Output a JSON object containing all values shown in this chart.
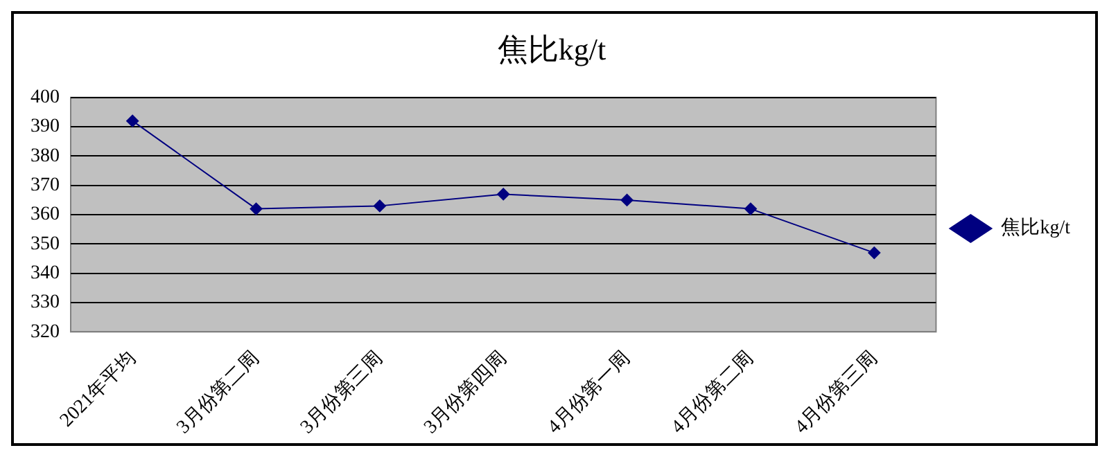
{
  "chart_data": {
    "type": "line",
    "title": "焦比kg/t",
    "categories": [
      "2021年平均",
      "3月份第二周",
      "3月份第三周",
      "3月份第四周",
      "4月份第一周",
      "4月份第二周",
      "4月份第三周"
    ],
    "series": [
      {
        "name": "焦比kg/t",
        "color": "#000080",
        "values": [
          392,
          362,
          363,
          367,
          365,
          362,
          347
        ]
      }
    ],
    "ylim": [
      320,
      400
    ],
    "yticks": [
      320,
      330,
      340,
      350,
      360,
      370,
      380,
      390,
      400
    ],
    "grid": "y",
    "legend": "right",
    "marker": "diamond",
    "line_style": "solid"
  }
}
